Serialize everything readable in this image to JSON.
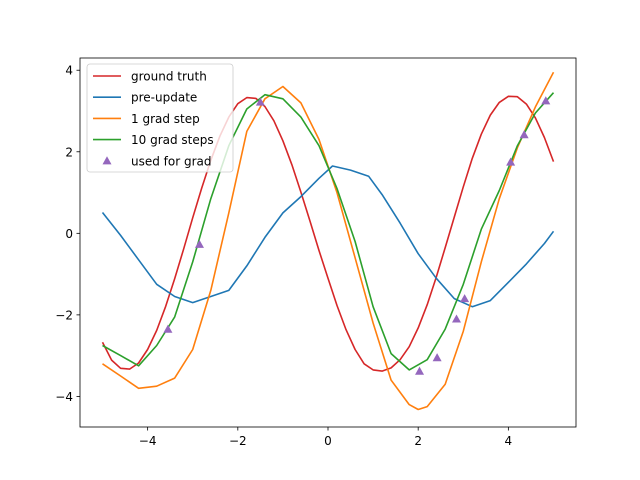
{
  "chart_data": {
    "type": "line",
    "xlim": [
      -5.5,
      5.5
    ],
    "ylim": [
      -4.75,
      4.3
    ],
    "xticks": [
      -4,
      -2,
      0,
      2,
      4
    ],
    "xtick_labels": [
      "−4",
      "−2",
      "0",
      "2",
      "4"
    ],
    "yticks": [
      -4,
      -2,
      0,
      2,
      4
    ],
    "ytick_labels": [
      "−4",
      "−2",
      "0",
      "2",
      "4"
    ],
    "grid": false,
    "legend_position": "upper-left",
    "series": [
      {
        "name": "ground truth",
        "color": "#d62728",
        "x": [
          -5.0,
          -4.8,
          -4.6,
          -4.4,
          -4.2,
          -4.0,
          -3.8,
          -3.6,
          -3.4,
          -3.2,
          -3.0,
          -2.8,
          -2.6,
          -2.4,
          -2.2,
          -2.0,
          -1.8,
          -1.6,
          -1.4,
          -1.2,
          -1.0,
          -0.8,
          -0.6,
          -0.4,
          -0.2,
          0.0,
          0.2,
          0.4,
          0.6,
          0.8,
          1.0,
          1.2,
          1.4,
          1.6,
          1.8,
          2.0,
          2.2,
          2.4,
          2.6,
          2.8,
          3.0,
          3.2,
          3.4,
          3.6,
          3.8,
          4.0,
          4.2,
          4.4,
          4.6,
          4.8,
          5.0
        ],
        "y": [
          -2.67,
          -3.11,
          -3.31,
          -3.33,
          -3.18,
          -2.85,
          -2.38,
          -1.79,
          -1.11,
          -0.38,
          0.38,
          1.11,
          1.79,
          2.38,
          2.85,
          3.18,
          3.33,
          3.31,
          3.11,
          2.76,
          2.27,
          1.68,
          1.01,
          0.3,
          -0.42,
          -1.1,
          -1.77,
          -2.36,
          -2.85,
          -3.2,
          -3.35,
          -3.38,
          -3.3,
          -3.1,
          -2.78,
          -2.32,
          -1.75,
          -1.08,
          -0.35,
          0.4,
          1.14,
          1.84,
          2.43,
          2.9,
          3.21,
          3.36,
          3.35,
          3.17,
          2.83,
          2.35,
          1.76
        ]
      },
      {
        "name": "pre-update",
        "color": "#1f77b4",
        "x": [
          -5.0,
          -4.6,
          -4.2,
          -3.8,
          -3.4,
          -3.0,
          -2.6,
          -2.2,
          -1.8,
          -1.4,
          -1.0,
          -0.6,
          -0.2,
          0.1,
          0.5,
          0.9,
          1.2,
          1.6,
          2.0,
          2.4,
          2.8,
          3.2,
          3.6,
          4.0,
          4.4,
          4.8,
          5.0
        ],
        "y": [
          0.51,
          -0.05,
          -0.65,
          -1.25,
          -1.55,
          -1.7,
          -1.55,
          -1.4,
          -0.8,
          -0.1,
          0.5,
          0.9,
          1.35,
          1.65,
          1.55,
          1.4,
          0.95,
          0.25,
          -0.5,
          -1.1,
          -1.6,
          -1.8,
          -1.65,
          -1.2,
          -0.75,
          -0.25,
          0.05
        ]
      },
      {
        "name": "1 grad step",
        "color": "#ff7f0e",
        "x": [
          -5.0,
          -4.6,
          -4.2,
          -3.8,
          -3.4,
          -3.0,
          -2.6,
          -2.2,
          -1.8,
          -1.4,
          -1.0,
          -0.6,
          -0.2,
          0.2,
          0.6,
          1.0,
          1.4,
          1.8,
          2.0,
          2.2,
          2.6,
          3.0,
          3.4,
          3.8,
          4.2,
          4.6,
          5.0
        ],
        "y": [
          -3.2,
          -3.5,
          -3.8,
          -3.75,
          -3.55,
          -2.85,
          -1.4,
          0.5,
          2.5,
          3.3,
          3.6,
          3.2,
          2.3,
          1.0,
          -0.6,
          -2.2,
          -3.6,
          -4.2,
          -4.32,
          -4.25,
          -3.7,
          -2.4,
          -0.7,
          0.85,
          2.1,
          3.1,
          3.95
        ]
      },
      {
        "name": "10 grad steps",
        "color": "#2ca02c",
        "x": [
          -5.0,
          -4.6,
          -4.2,
          -3.8,
          -3.4,
          -3.0,
          -2.6,
          -2.2,
          -1.8,
          -1.4,
          -1.0,
          -0.6,
          -0.2,
          0.2,
          0.6,
          1.0,
          1.4,
          1.8,
          2.2,
          2.6,
          3.0,
          3.4,
          3.8,
          4.2,
          4.6,
          5.0
        ],
        "y": [
          -2.75,
          -3.0,
          -3.25,
          -2.75,
          -2.05,
          -0.7,
          0.85,
          2.15,
          3.05,
          3.4,
          3.3,
          2.85,
          2.15,
          1.1,
          -0.2,
          -1.8,
          -2.95,
          -3.35,
          -3.1,
          -2.35,
          -1.25,
          0.1,
          1.05,
          2.15,
          2.95,
          3.45
        ]
      }
    ],
    "scatter": {
      "name": "used for grad",
      "color": "#9467bd",
      "marker": "triangle",
      "x": [
        -3.55,
        -2.85,
        -1.5,
        2.03,
        2.42,
        2.85,
        3.03,
        4.05,
        4.35,
        4.83
      ],
      "y": [
        -2.35,
        -0.27,
        3.22,
        -3.38,
        -3.05,
        -2.1,
        -1.6,
        1.75,
        2.42,
        3.25
      ]
    }
  }
}
